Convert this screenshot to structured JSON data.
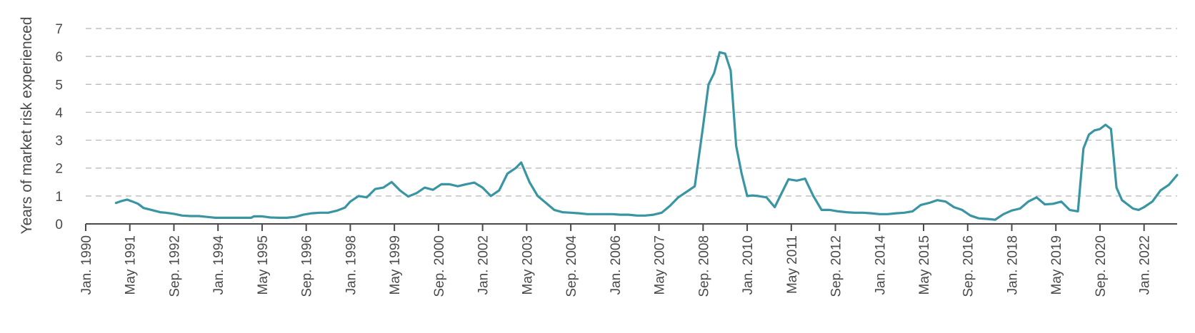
{
  "chart_data": {
    "type": "line",
    "title": "",
    "xlabel": "",
    "ylabel": "Years of market risk experienced",
    "ylim": [
      0,
      7
    ],
    "yticks": [
      0,
      1,
      2,
      3,
      4,
      5,
      6,
      7
    ],
    "grid": true,
    "legend": "none",
    "colors": {
      "line": "#3a95a3",
      "axis": "#4a4a4a",
      "grid": "#b5b5b5",
      "text": "#4a4a4a"
    },
    "x_tick_labels": [
      "Jan. 1990",
      "May 1991",
      "Sep. 1992",
      "Jan. 1994",
      "May 1995",
      "Sep. 1996",
      "Jan. 1998",
      "May 1999",
      "Sep. 2000",
      "Jan. 2002",
      "May 2003",
      "Sep. 2004",
      "Jan. 2006",
      "May 2007",
      "Sep. 2008",
      "Jan. 2010",
      "May 2011",
      "Sep. 2012",
      "Jan. 2014",
      "May 2015",
      "Sep. 2016",
      "Jan. 2018",
      "May 2019",
      "Sep. 2020",
      "Jan. 2022"
    ],
    "series": [
      {
        "x": [
          "1990-12",
          "1991-02",
          "1991-04",
          "1991-06",
          "1991-08",
          "1991-10",
          "1991-12",
          "1992-02",
          "1992-04",
          "1992-06",
          "1992-09",
          "1992-12",
          "1993-03",
          "1993-06",
          "1993-09",
          "1993-12",
          "1994-03",
          "1994-06",
          "1994-09",
          "1995-01",
          "1995-02",
          "1995-05",
          "1995-08",
          "1995-11",
          "1996-02",
          "1996-05",
          "1996-08",
          "1996-11",
          "1997-02",
          "1997-05",
          "1997-08",
          "1997-11",
          "1998-01",
          "1998-04",
          "1998-07",
          "1998-10",
          "1999-01",
          "1999-04",
          "1999-07",
          "1999-10",
          "2000-01",
          "2000-04",
          "2000-07",
          "2000-10",
          "2001-01",
          "2001-04",
          "2001-07",
          "2001-10",
          "2002-01",
          "2002-04",
          "2002-07",
          "2002-10",
          "2003-01",
          "2003-03",
          "2003-06",
          "2003-09",
          "2003-12",
          "2004-03",
          "2004-06",
          "2004-09",
          "2004-12",
          "2005-03",
          "2005-06",
          "2005-09",
          "2005-12",
          "2006-03",
          "2006-06",
          "2006-09",
          "2006-12",
          "2007-03",
          "2007-06",
          "2007-09",
          "2007-12",
          "2008-03",
          "2008-06",
          "2008-09",
          "2008-11",
          "2009-01",
          "2009-03",
          "2009-05",
          "2009-07",
          "2009-09",
          "2009-11",
          "2010-01",
          "2010-03",
          "2010-05",
          "2010-08",
          "2010-11",
          "2011-02",
          "2011-04",
          "2011-07",
          "2011-10",
          "2012-01",
          "2012-04",
          "2012-07",
          "2012-10",
          "2013-01",
          "2013-04",
          "2013-07",
          "2013-10",
          "2014-01",
          "2014-04",
          "2014-07",
          "2014-10",
          "2015-01",
          "2015-04",
          "2015-07",
          "2015-10",
          "2016-01",
          "2016-04",
          "2016-07",
          "2016-10",
          "2017-01",
          "2017-04",
          "2017-07",
          "2017-10",
          "2018-01",
          "2018-04",
          "2018-07",
          "2018-10",
          "2019-01",
          "2019-04",
          "2019-07",
          "2019-10",
          "2020-01",
          "2020-03",
          "2020-05",
          "2020-07",
          "2020-09",
          "2020-11",
          "2021-01",
          "2021-03",
          "2021-05",
          "2021-07",
          "2021-09",
          "2021-11",
          "2022-01",
          "2022-04",
          "2022-07",
          "2022-10",
          "2023-01"
        ],
        "y": [
          0.75,
          0.82,
          0.87,
          0.8,
          0.72,
          0.57,
          0.52,
          0.47,
          0.42,
          0.4,
          0.36,
          0.3,
          0.28,
          0.28,
          0.25,
          0.22,
          0.22,
          0.22,
          0.22,
          0.22,
          0.27,
          0.27,
          0.23,
          0.22,
          0.22,
          0.25,
          0.33,
          0.38,
          0.4,
          0.4,
          0.47,
          0.58,
          0.8,
          1.0,
          0.95,
          1.25,
          1.3,
          1.5,
          1.2,
          0.98,
          1.1,
          1.3,
          1.22,
          1.42,
          1.42,
          1.35,
          1.42,
          1.48,
          1.3,
          1.0,
          1.2,
          1.8,
          2.0,
          2.2,
          1.5,
          1.0,
          0.75,
          0.5,
          0.42,
          0.4,
          0.38,
          0.35,
          0.35,
          0.35,
          0.35,
          0.33,
          0.33,
          0.3,
          0.3,
          0.33,
          0.4,
          0.65,
          0.95,
          1.15,
          1.35,
          3.5,
          5.0,
          5.4,
          6.15,
          6.1,
          5.5,
          2.8,
          1.8,
          1.0,
          1.02,
          1.0,
          0.95,
          0.6,
          1.2,
          1.6,
          1.55,
          1.62,
          1.0,
          0.5,
          0.5,
          0.45,
          0.42,
          0.4,
          0.4,
          0.38,
          0.35,
          0.35,
          0.38,
          0.4,
          0.45,
          0.68,
          0.75,
          0.85,
          0.8,
          0.6,
          0.5,
          0.3,
          0.2,
          0.18,
          0.15,
          0.35,
          0.48,
          0.55,
          0.8,
          0.95,
          0.7,
          0.72,
          0.8,
          0.5,
          0.45,
          2.7,
          3.2,
          3.35,
          3.4,
          3.55,
          3.4,
          1.3,
          0.85,
          0.7,
          0.55,
          0.5,
          0.6,
          0.8,
          1.2,
          1.4,
          1.75
        ]
      }
    ]
  }
}
